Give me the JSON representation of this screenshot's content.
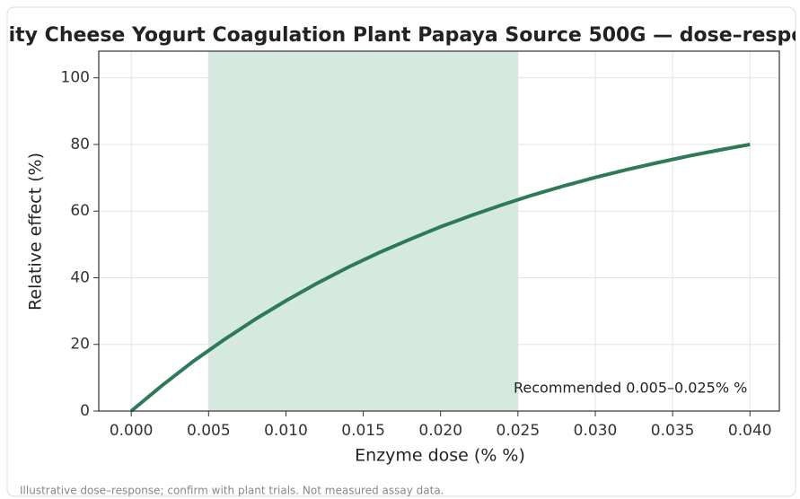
{
  "chart_data": {
    "type": "line",
    "title": "ity Cheese Yogurt Coagulation Plant Papaya Source 500G — dose–respo",
    "xlabel": "Enzyme dose (% %)",
    "ylabel": "Relative effect (%)",
    "note": "Illustrative dose–response; confirm with plant trials. Not measured assay data.",
    "x": [
      0,
      0.002,
      0.004,
      0.006,
      0.008,
      0.01,
      0.012,
      0.014,
      0.016,
      0.018,
      0.02,
      0.022,
      0.024,
      0.026,
      0.028,
      0.03,
      0.032,
      0.034,
      0.036,
      0.038,
      0.04
    ],
    "series": [
      {
        "name": "Relative effect (%)",
        "color": "#2e7a58",
        "values": [
          0,
          7.7,
          14.9,
          21.4,
          27.5,
          33.1,
          38.3,
          43.1,
          47.5,
          51.5,
          55.3,
          58.7,
          61.9,
          64.9,
          67.6,
          70.1,
          72.4,
          74.5,
          76.5,
          78.3,
          80.0
        ]
      }
    ],
    "band": {
      "x": [
        0.005,
        0.025
      ],
      "label": "Recommended 0.005–0.025% %",
      "color": "#d5eadf"
    },
    "xlim": [
      -0.0021,
      0.0419
    ],
    "ylim": [
      0,
      108
    ],
    "xticks": [
      {
        "value": 0,
        "label": "0.000"
      },
      {
        "value": 0.005,
        "label": "0.005"
      },
      {
        "value": 0.01,
        "label": "0.010"
      },
      {
        "value": 0.015,
        "label": "0.015"
      },
      {
        "value": 0.02,
        "label": "0.020"
      },
      {
        "value": 0.025,
        "label": "0.025"
      },
      {
        "value": 0.03,
        "label": "0.030"
      },
      {
        "value": 0.035,
        "label": "0.035"
      },
      {
        "value": 0.04,
        "label": "0.040"
      }
    ],
    "yticks": [
      0,
      20,
      40,
      60,
      80,
      100
    ],
    "grid": true,
    "legend": "lower right"
  }
}
